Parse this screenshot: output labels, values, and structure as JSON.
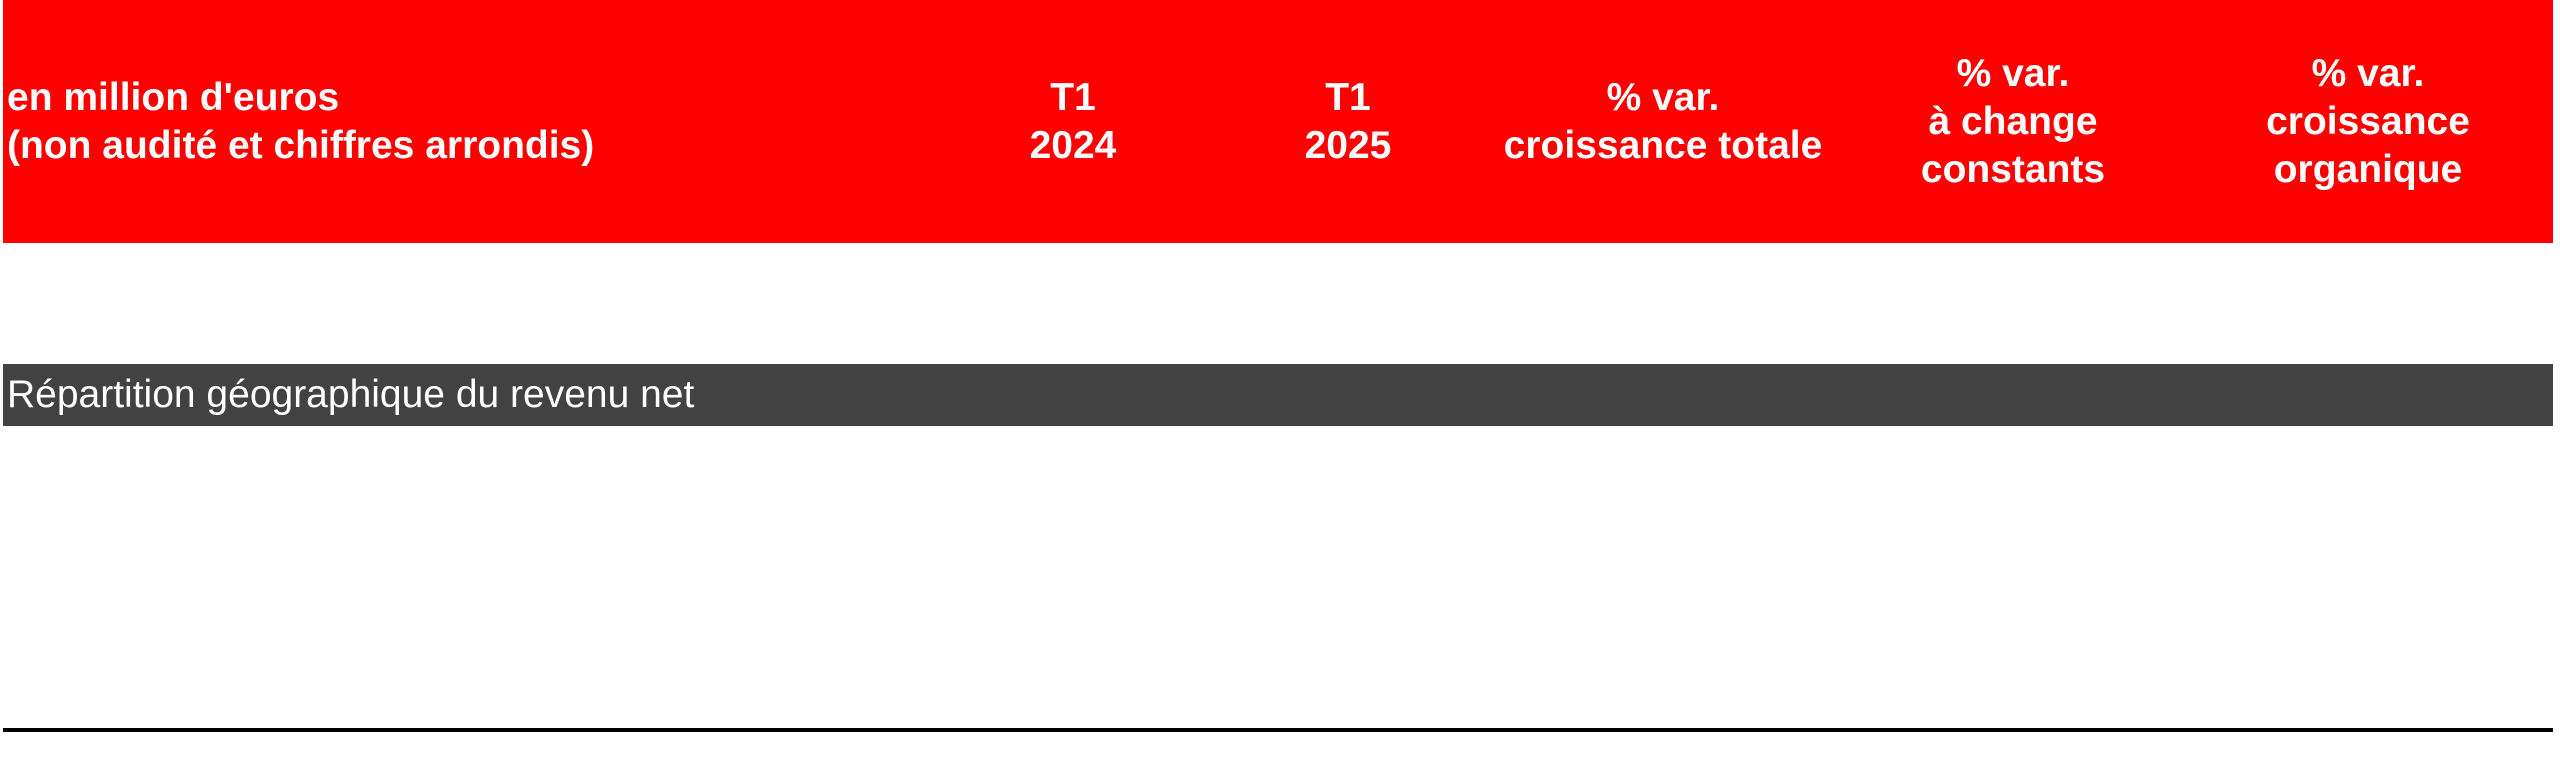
{
  "header": {
    "label_line1": "en million d'euros",
    "label_line2": "(non audité et chiffres arrondis)",
    "columns": [
      {
        "line1": "T1",
        "line2": "2024"
      },
      {
        "line1": "T1",
        "line2": "2025"
      },
      {
        "line1": "% var.",
        "line2": "croissance totale"
      },
      {
        "line1": "% var.",
        "line2": "à change",
        "line3": "constants"
      },
      {
        "line1": "% var.",
        "line2": "croissance",
        "line3": "organique"
      }
    ]
  },
  "section": {
    "title": "Répartition géographique du revenu net"
  },
  "colors": {
    "header_bg": "#ff0000",
    "section_bg": "#424242",
    "rule": "#000000"
  }
}
